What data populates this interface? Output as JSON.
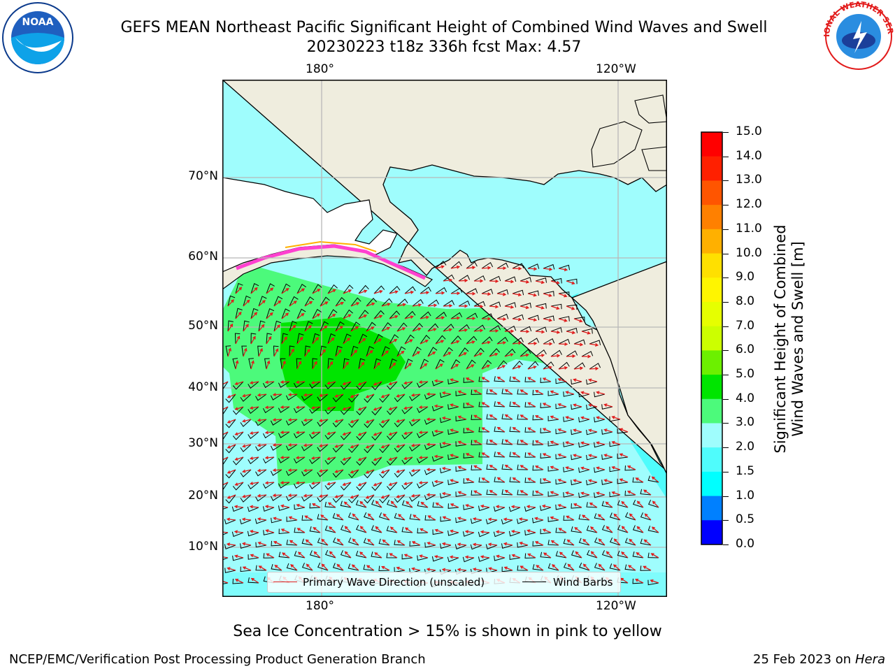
{
  "title_line1": "GEFS MEAN Northeast Pacific Significant Height of Combined Wind Waves and Swell",
  "title_line2": "20230223 t18z 336h fcst   Max: 4.57",
  "map": {
    "lon_labels_top": [
      "180°",
      "120°W"
    ],
    "lon_labels_bottom": [
      "180°",
      "120°W"
    ],
    "lat_labels": [
      "70°N",
      "60°N",
      "50°N",
      "40°N",
      "30°N",
      "20°N",
      "10°N"
    ],
    "legend": {
      "wave_label": "Primary Wave Direction (unscaled)",
      "wind_label": "Wind Barbs",
      "wave_color": "#e01a1a",
      "wind_color": "#000000"
    },
    "ocean_color": "#9ffdfd",
    "land_color": "#efedde",
    "wave_height_zones": [
      {
        "level": "2.0-3.0",
        "color": "#9ffdfd"
      },
      {
        "level": "3.0-4.0",
        "color": "#4cfa7b"
      },
      {
        "level": "4.0-5.0",
        "color": "#00e500"
      },
      {
        "level": "1.5-2.0",
        "color": "#4ffcfc"
      }
    ]
  },
  "colorbar": {
    "label_line1": "Significant Height of Combined",
    "label_line2": "Wind Waves and Swell [m]",
    "ticks": [
      "15.0",
      "14.0",
      "13.0",
      "12.0",
      "11.0",
      "10.0",
      "9.0",
      "8.0",
      "7.0",
      "6.0",
      "5.0",
      "4.0",
      "3.0",
      "2.0",
      "1.5",
      "1.0",
      "0.5",
      "0.0"
    ],
    "colors": [
      "#ff0000",
      "#ff2000",
      "#ff5500",
      "#ff8000",
      "#ffb000",
      "#ffe000",
      "#fff500",
      "#e6ff00",
      "#ccff00",
      "#6cf000",
      "#00e500",
      "#4cfa7b",
      "#9ffdfd",
      "#4ffcfc",
      "#00ffff",
      "#0080ff",
      "#0000ff"
    ]
  },
  "note": "Sea Ice Concentration > 15% is shown in pink to yellow",
  "credit": "NCEP/EMC/Verification Post Processing Product Generation Branch",
  "timestamp": "25 Feb 2023 on",
  "host": "Hera",
  "logos": {
    "left": {
      "icon": "noaa-logo",
      "text": "NOAA"
    },
    "right": {
      "icon": "nws-logo",
      "text": "NATIONAL WEATHER SERVICE"
    }
  }
}
